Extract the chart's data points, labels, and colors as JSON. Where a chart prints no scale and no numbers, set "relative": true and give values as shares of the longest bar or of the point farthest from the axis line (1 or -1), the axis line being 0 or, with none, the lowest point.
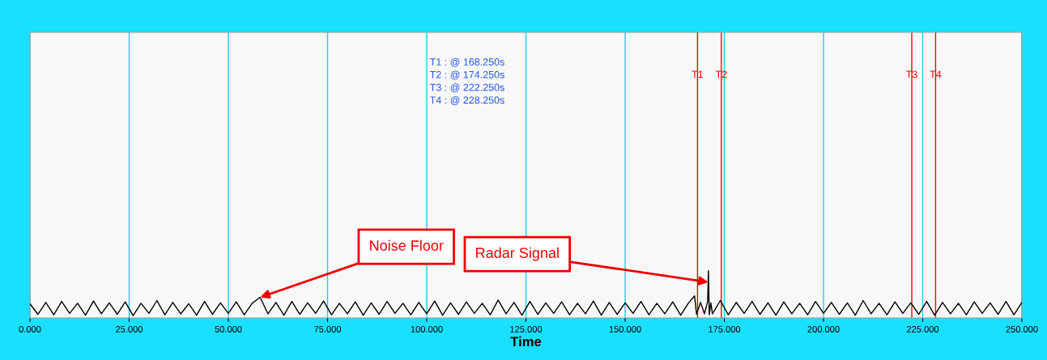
{
  "chart_data": {
    "type": "line",
    "relative": true,
    "xlabel": "Time",
    "xlim": [
      0,
      250
    ],
    "xticks": [
      {
        "value": 0,
        "label": "0.000"
      },
      {
        "value": 25,
        "label": "25.000"
      },
      {
        "value": 50,
        "label": "50.000"
      },
      {
        "value": 75,
        "label": "75.000"
      },
      {
        "value": 100,
        "label": "100.000"
      },
      {
        "value": 125,
        "label": "125.000"
      },
      {
        "value": 150,
        "label": "150.000"
      },
      {
        "value": 175,
        "label": "175.000"
      },
      {
        "value": 200,
        "label": "200.000"
      },
      {
        "value": 225,
        "label": "225.000"
      },
      {
        "value": 250,
        "label": "250.000"
      }
    ],
    "grid": "x",
    "tick_labels": "x",
    "series": [
      {
        "color": "#000000",
        "x": [
          0,
          2,
          4,
          6,
          8,
          10,
          12,
          14,
          16,
          18,
          20,
          22,
          24,
          26,
          28,
          30,
          32,
          34,
          36,
          38,
          40,
          42,
          44,
          46,
          48,
          50,
          52,
          54,
          56,
          58,
          60,
          62,
          64,
          66,
          68,
          70,
          72,
          74,
          76,
          78,
          80,
          82,
          84,
          86,
          88,
          90,
          92,
          94,
          96,
          98,
          100,
          102,
          104,
          106,
          108,
          110,
          112,
          114,
          116,
          118,
          120,
          122,
          124,
          126,
          128,
          130,
          132,
          134,
          136,
          138,
          140,
          142,
          144,
          146,
          148,
          150,
          152,
          154,
          156,
          158,
          160,
          162,
          164,
          166,
          167.5,
          168,
          169,
          170,
          170.8,
          171,
          171.2,
          171.6,
          172,
          174,
          176,
          178,
          180,
          182,
          184,
          186,
          188,
          190,
          192,
          194,
          196,
          198,
          200,
          202,
          204,
          206,
          208,
          210,
          212,
          214,
          216,
          218,
          220,
          222,
          224,
          226,
          228,
          230,
          232,
          234,
          236,
          238,
          240,
          242,
          244,
          246,
          248,
          250
        ],
        "values": [
          0.28,
          0.05,
          0.31,
          0.04,
          0.33,
          0.07,
          0.29,
          0.03,
          0.34,
          0.06,
          0.3,
          0.05,
          0.32,
          0.02,
          0.29,
          0.07,
          0.35,
          0.04,
          0.31,
          0.06,
          0.28,
          0.03,
          0.33,
          0.05,
          0.3,
          0.07,
          0.32,
          0.04,
          0.29,
          0.42,
          0.06,
          0.31,
          0.03,
          0.33,
          0.05,
          0.3,
          0.07,
          0.34,
          0.04,
          0.29,
          0.06,
          0.32,
          0.03,
          0.3,
          0.05,
          0.33,
          0.07,
          0.29,
          0.04,
          0.31,
          0.06,
          0.34,
          0.03,
          0.3,
          0.05,
          0.32,
          0.07,
          0.29,
          0.04,
          0.36,
          0.06,
          0.31,
          0.03,
          0.33,
          0.05,
          0.3,
          0.07,
          0.32,
          0.04,
          0.29,
          0.06,
          0.34,
          0.03,
          0.31,
          0.05,
          0.3,
          0.07,
          0.33,
          0.04,
          0.29,
          0.06,
          0.32,
          0.03,
          0.3,
          0.45,
          0.05,
          0.31,
          0.06,
          0.33,
          1.0,
          0.04,
          0.3,
          0.06,
          0.35,
          0.04,
          0.31,
          0.07,
          0.33,
          0.05,
          0.3,
          0.03,
          0.32,
          0.06,
          0.29,
          0.04,
          0.33,
          0.07,
          0.31,
          0.05,
          0.3,
          0.03,
          0.35,
          0.06,
          0.29,
          0.04,
          0.32,
          0.07,
          0.3,
          0.05,
          0.33,
          0.03,
          0.31,
          0.06,
          0.29,
          0.04,
          0.32,
          0.07,
          0.3,
          0.05,
          0.33,
          0.04,
          0.31
        ]
      }
    ],
    "ref_lines": [
      {
        "axis": "x",
        "value": 168.25,
        "label": "T1",
        "color": "#ff0000"
      },
      {
        "axis": "x",
        "value": 174.25,
        "label": "T2",
        "color": "#ff0000"
      },
      {
        "axis": "x",
        "value": 222.25,
        "label": "T3",
        "color": "#ff0000"
      },
      {
        "axis": "x",
        "value": 228.25,
        "label": "T4",
        "color": "#ff0000"
      }
    ],
    "annotations": [
      "T1 : @ 168.250s\nT2 : @ 174.250s\nT3 : @ 222.250s\nT4 : @ 228.250s",
      {
        "text": "Noise Floor",
        "x": 58,
        "y": 0.42
      },
      {
        "text": "Radar Signal",
        "x": 171,
        "y": 0.75
      }
    ]
  }
}
